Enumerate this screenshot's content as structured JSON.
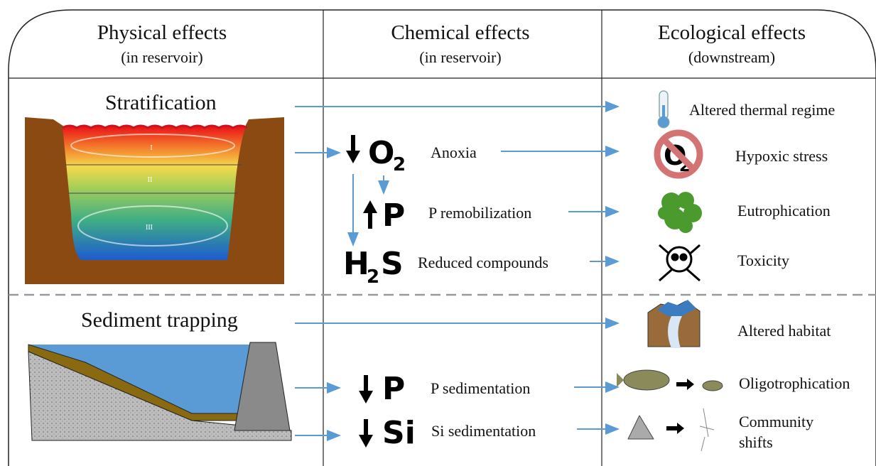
{
  "header": {
    "columns": [
      {
        "title": "Physical effects",
        "subtitle": "(in reservoir)"
      },
      {
        "title": "Chemical effects",
        "subtitle": "(in reservoir)"
      },
      {
        "title": "Ecological effects",
        "subtitle": "(downstream)"
      }
    ]
  },
  "physical": {
    "stratification": {
      "title": "Stratification",
      "layers": [
        "I",
        "II",
        "III"
      ]
    },
    "sediment_trapping": {
      "title": "Sediment trapping"
    }
  },
  "chemical": [
    {
      "symbol": [
        "O",
        "2"
      ],
      "label": "Anoxia"
    },
    {
      "symbol": [
        "P"
      ],
      "label": "P remobilization"
    },
    {
      "symbol": [
        "H",
        "2",
        "S"
      ],
      "label": "Reduced compounds"
    },
    {
      "symbol": [
        "P"
      ],
      "label": "P sedimentation"
    },
    {
      "symbol": [
        "Si"
      ],
      "label": "Si sedimentation"
    }
  ],
  "ecological": [
    {
      "label": [
        "Altered thermal regime"
      ]
    },
    {
      "label": [
        "Hypoxic stress"
      ],
      "icon_text": [
        "O",
        "2"
      ]
    },
    {
      "label": [
        "Eutrophication"
      ]
    },
    {
      "label": [
        "Toxicity"
      ]
    },
    {
      "label": [
        "Altered habitat"
      ]
    },
    {
      "label": [
        "Oligotrophication"
      ]
    },
    {
      "label": [
        "Community",
        "shifts"
      ]
    }
  ]
}
